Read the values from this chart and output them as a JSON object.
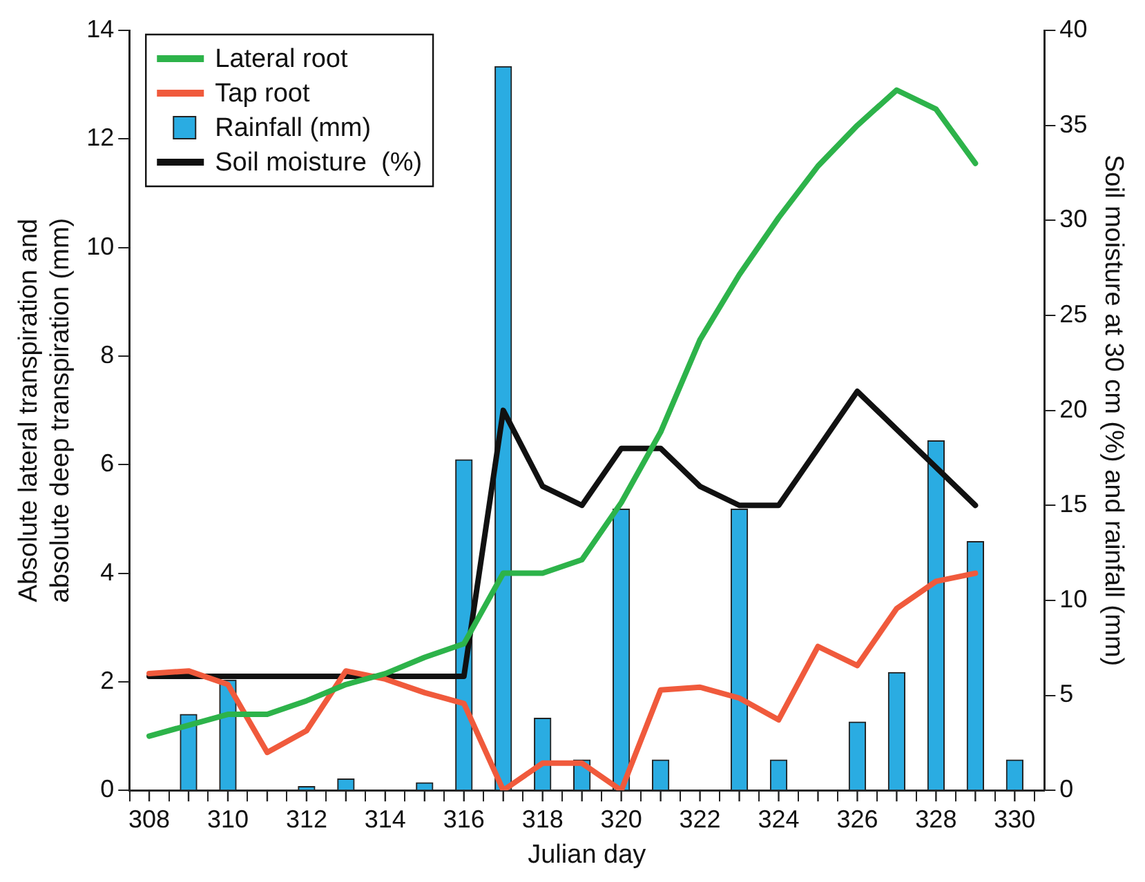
{
  "chart_data": {
    "type": "line",
    "xlabel": "Julian day",
    "ylabel": "Absolute lateral transpiration and\nabsolute deep transpiration (mm)",
    "y2label": "Soil moisture at 30 cm (%) and rainfall (mm)",
    "xlim": [
      308,
      330.25
    ],
    "xticks": [
      308,
      {
        "value": 309,
        "label": null
      },
      310,
      {
        "value": 311,
        "label": null
      },
      312,
      {
        "value": 313,
        "label": null
      },
      314,
      {
        "value": 315,
        "label": null
      },
      316,
      {
        "value": 317,
        "label": null
      },
      318,
      {
        "value": 319,
        "label": null
      },
      320,
      {
        "value": 321,
        "label": null
      },
      322,
      {
        "value": 323,
        "label": null
      },
      324,
      {
        "value": 325,
        "label": null
      },
      326,
      {
        "value": 327,
        "label": null
      },
      328,
      {
        "value": 329,
        "label": null
      },
      330
    ],
    "ylim": [
      0,
      14
    ],
    "yticks": [
      0,
      2,
      4,
      6,
      8,
      10,
      12,
      14
    ],
    "y2lim": [
      0,
      40
    ],
    "y2ticks": [
      0,
      5,
      10,
      15,
      20,
      25,
      30,
      35,
      40
    ],
    "grid": false,
    "legend": "top left",
    "marker": "none",
    "line_style": "solid",
    "series": [
      {
        "name": "Lateral root",
        "color": "#2db34a",
        "x": [
          308,
          309,
          310,
          311,
          312,
          313,
          314,
          315,
          316,
          317,
          318,
          319,
          320,
          321,
          322,
          323,
          324,
          325,
          326,
          327,
          328,
          329
        ],
        "values": [
          1.0,
          1.2,
          1.4,
          1.4,
          1.65,
          1.95,
          2.15,
          2.45,
          2.7,
          4.0,
          4.0,
          4.25,
          5.3,
          6.6,
          8.3,
          9.5,
          10.55,
          11.5,
          12.25,
          12.9,
          12.55,
          11.55
        ]
      },
      {
        "name": "Tap root",
        "color": "#f05a3c",
        "x": [
          308,
          309,
          310,
          311,
          312,
          313,
          314,
          315,
          316,
          317,
          318,
          319,
          320,
          321,
          322,
          323,
          324,
          325,
          326,
          327,
          328,
          329
        ],
        "values": [
          2.15,
          2.2,
          1.95,
          0.7,
          1.1,
          2.2,
          2.05,
          1.8,
          1.6,
          0,
          0.5,
          0.5,
          0,
          1.85,
          1.9,
          1.7,
          1.3,
          2.65,
          2.3,
          3.35,
          3.85,
          4.0
        ]
      },
      {
        "name": "Rainfall (mm)",
        "type": "bar",
        "axis": "y2",
        "color": "#2aace2",
        "x": [
          309,
          310,
          312,
          313,
          315,
          316,
          317,
          318,
          319,
          320,
          321,
          323,
          324,
          326,
          327,
          328,
          329,
          330
        ],
        "values": [
          4,
          5.8,
          0.2,
          0.6,
          0.4,
          17.4,
          38.1,
          3.8,
          1.6,
          14.8,
          1.6,
          14.8,
          1.6,
          3.6,
          6.2,
          18.4,
          13.1,
          1.6
        ]
      },
      {
        "name": "Soil moisture  (%)",
        "axis": "y2",
        "color": "#111111",
        "x": [
          308,
          309,
          310,
          311,
          312,
          313,
          314,
          315,
          316,
          317,
          318,
          319,
          320,
          321,
          322,
          323,
          324,
          325,
          326,
          327,
          328,
          329
        ],
        "values": [
          6,
          6,
          6,
          6,
          6,
          6,
          6,
          6,
          6,
          20,
          16,
          15,
          18,
          18,
          16,
          15,
          15,
          18,
          21,
          19,
          17,
          15
        ]
      }
    ]
  }
}
